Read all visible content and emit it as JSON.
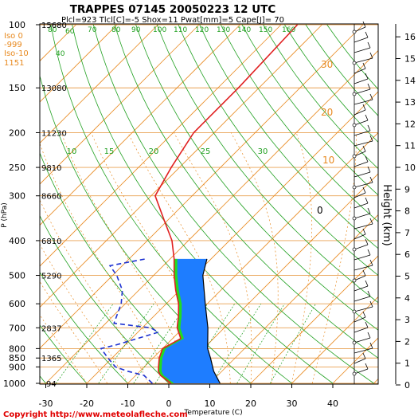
{
  "chart_data": {
    "type": "skew-t",
    "title": "TRAPPES 07145 20050223 12 UTC",
    "subtitle": "Plcl=923 Tlcl[C]=-5 Shox=11 Pwat[mm]=5 Cape[J]= 70",
    "xlabel": "Temperature (C)",
    "ylabel": "P (hPa)",
    "y2label": "Height (km)",
    "copyright": "Copyright http://www.meteolafleche.com",
    "xlim": [
      -35,
      48
    ],
    "ylim_hPa": [
      1000,
      100
    ],
    "x_ticks": [
      -30,
      -20,
      -10,
      0,
      10,
      20,
      30,
      40
    ],
    "pressure_levels": [
      {
        "p": 100,
        "label": "100",
        "geo": "15680"
      },
      {
        "p": 150,
        "label": "150",
        "geo": "13080"
      },
      {
        "p": 200,
        "label": "200",
        "geo": "11230"
      },
      {
        "p": 250,
        "label": "250",
        "geo": "9810"
      },
      {
        "p": 300,
        "label": "300",
        "geo": "8660"
      },
      {
        "p": 400,
        "label": "400",
        "geo": "6810"
      },
      {
        "p": 500,
        "label": "500",
        "geo": "5290"
      },
      {
        "p": 600,
        "label": "600",
        "geo": ""
      },
      {
        "p": 700,
        "label": "700",
        "geo": "2837"
      },
      {
        "p": 800,
        "label": "800",
        "geo": ""
      },
      {
        "p": 850,
        "label": "850",
        "geo": "1365"
      },
      {
        "p": 900,
        "label": "900",
        "geo": ""
      },
      {
        "p": 1000,
        "label": "1000",
        "geo": "94"
      }
    ],
    "height_km_ticks": [
      0,
      1,
      2,
      3,
      4,
      5,
      6,
      7,
      8,
      9,
      10,
      11,
      12,
      13,
      14,
      15,
      16
    ],
    "iso_info": [
      "Iso 0",
      "-999",
      "Iso-10",
      "1151"
    ],
    "mixing_ratio_labels": [
      "80",
      "60",
      "40",
      "70",
      "80",
      "90",
      "100",
      "110",
      "120",
      "130",
      "140",
      "150",
      "160"
    ],
    "dry_adiabat_labels": [
      "10",
      "15",
      "20",
      "25",
      "30"
    ],
    "isotherm_labels": [
      "0",
      "10",
      "20",
      "30"
    ],
    "series": [
      {
        "name": "Temperature",
        "color": "#e02020",
        "points": [
          {
            "p": 1000,
            "t": 0.5
          },
          {
            "p": 950,
            "t": -4
          },
          {
            "p": 925,
            "t": -5.5
          },
          {
            "p": 900,
            "t": -6.5
          },
          {
            "p": 850,
            "t": -8.5
          },
          {
            "p": 800,
            "t": -10
          },
          {
            "p": 750,
            "t": -8
          },
          {
            "p": 700,
            "t": -11.5
          },
          {
            "p": 650,
            "t": -14
          },
          {
            "p": 600,
            "t": -17
          },
          {
            "p": 550,
            "t": -21
          },
          {
            "p": 500,
            "t": -25
          },
          {
            "p": 450,
            "t": -29
          },
          {
            "p": 400,
            "t": -34
          },
          {
            "p": 350,
            "t": -41
          },
          {
            "p": 300,
            "t": -49
          },
          {
            "p": 250,
            "t": -52
          },
          {
            "p": 200,
            "t": -55
          },
          {
            "p": 150,
            "t": -55
          },
          {
            "p": 100,
            "t": -56
          }
        ]
      },
      {
        "name": "Dew point",
        "color": "#1e32d2",
        "points": [
          {
            "p": 1000,
            "t": -4
          },
          {
            "p": 950,
            "t": -8
          },
          {
            "p": 925,
            "t": -13
          },
          {
            "p": 900,
            "t": -17
          },
          {
            "p": 850,
            "t": -21
          },
          {
            "p": 800,
            "t": -25
          },
          {
            "p": 780,
            "t": -22
          },
          {
            "p": 720,
            "t": -15
          },
          {
            "p": 700,
            "t": -18
          },
          {
            "p": 680,
            "t": -28
          },
          {
            "p": 600,
            "t": -31
          },
          {
            "p": 550,
            "t": -34
          },
          {
            "p": 500,
            "t": -39
          },
          {
            "p": 470,
            "t": -43
          },
          {
            "p": 450,
            "t": -36
          }
        ]
      }
    ],
    "colors": {
      "blue_area": "#1e7dff",
      "green_area": "#22dd22",
      "mixing": "#20a020",
      "isotherm": "#e88a20",
      "parcel": "#000000"
    }
  }
}
